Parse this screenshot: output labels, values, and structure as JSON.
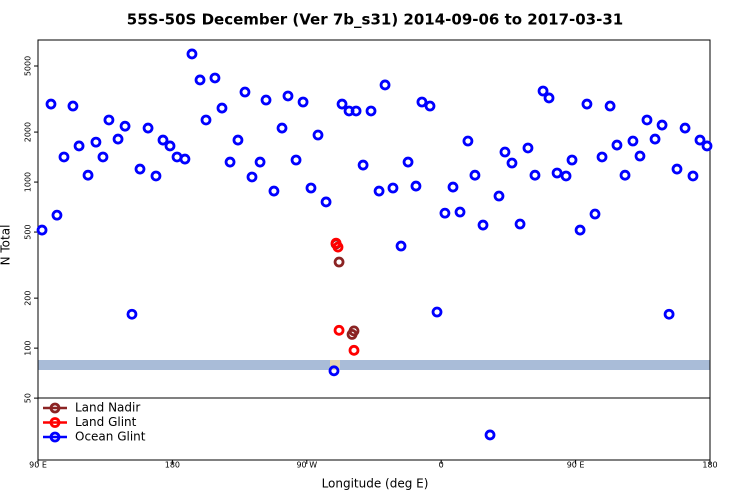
{
  "chart_data": {
    "type": "scatter",
    "title": "55S-50S December (Ver 7b_s31)   2014-09-06 to 2017-03-31",
    "x_label": "Longitude (deg E)",
    "y_label": "N Total",
    "yscale": "log",
    "xlim": [
      90,
      540
    ],
    "ylim": [
      21.2,
      7170
    ],
    "xticks": [
      {
        "value": 90,
        "label": "90 E"
      },
      {
        "value": 180,
        "label": "180"
      },
      {
        "value": 270,
        "label": "90 W"
      },
      {
        "value": 360,
        "label": "0"
      },
      {
        "value": 450,
        "label": "90 E"
      },
      {
        "value": 540,
        "label": "180"
      }
    ],
    "yticks": [
      50,
      100,
      200,
      500,
      1000,
      2000,
      5000
    ],
    "series": [
      {
        "name": "Land Nadir",
        "color": "#8b2323",
        "x": [
          289.6,
          291.6,
          300.3,
          301.6
        ],
        "values": [
          424,
          330,
          121,
          127
        ]
      },
      {
        "name": "Land Glint",
        "color": "#ff0000",
        "x": [
          289.6,
          290.9,
          291.6,
          301.6
        ],
        "values": [
          429,
          406,
          128,
          97
        ]
      },
      {
        "name": "Ocean Glint",
        "color": "#0000ff",
        "x": [
          92.7,
          98.7,
          102.7,
          107.4,
          113.4,
          117.5,
          123.5,
          128.8,
          133.5,
          137.5,
          143.6,
          148.3,
          152.9,
          158.3,
          163.7,
          169.0,
          173.7,
          178.4,
          183.1,
          188.4,
          193.1,
          198.5,
          202.5,
          208.5,
          213.2,
          218.6,
          223.9,
          228.6,
          233.3,
          238.7,
          242.7,
          248.0,
          253.4,
          257.4,
          262.8,
          267.5,
          272.8,
          277.5,
          282.9,
          288.2,
          293.6,
          298.3,
          303.0,
          307.7,
          313.0,
          318.4,
          322.4,
          327.7,
          333.1,
          337.8,
          343.1,
          347.1,
          352.5,
          357.2,
          362.5,
          367.9,
          372.6,
          377.9,
          382.6,
          388.0,
          392.7,
          398.7,
          402.7,
          407.4,
          412.8,
          418.1,
          422.8,
          428.2,
          432.2,
          437.6,
          443.6,
          447.6,
          453.0,
          457.6,
          463.0,
          467.7,
          473.1,
          477.7,
          483.1,
          488.4,
          493.1,
          497.8,
          503.2,
          507.9,
          512.6,
          517.9,
          523.3,
          528.6,
          533.3,
          538.0
        ],
        "values": [
          514,
          2950,
          632,
          1416,
          2870,
          1650,
          1100,
          1740,
          1416,
          2365,
          1815,
          2170,
          160,
          1198,
          2115,
          1088,
          1790,
          1650,
          1416,
          1376,
          5910,
          4120,
          2365,
          4235,
          2790,
          1320,
          1790,
          3485,
          1073,
          1320,
          3120,
          883,
          2115,
          3300,
          1358,
          3035,
          921,
          1920,
          759,
          73,
          2950,
          2680,
          2680,
          1266,
          2680,
          883,
          3845,
          921,
          412,
          1320,
          946,
          3035,
          2870,
          165,
          650,
          933,
          660,
          1767,
          1100,
          551,
          30,
          824,
          1517,
          1302,
          559,
          1604,
          1100,
          3535,
          3210,
          1134,
          1088,
          1358,
          514,
          2950,
          642,
          1416,
          2870,
          1670,
          1100,
          1767,
          1435,
          2365,
          1815,
          2205,
          160,
          1198,
          2115,
          1088,
          1790,
          1650
        ]
      }
    ]
  }
}
